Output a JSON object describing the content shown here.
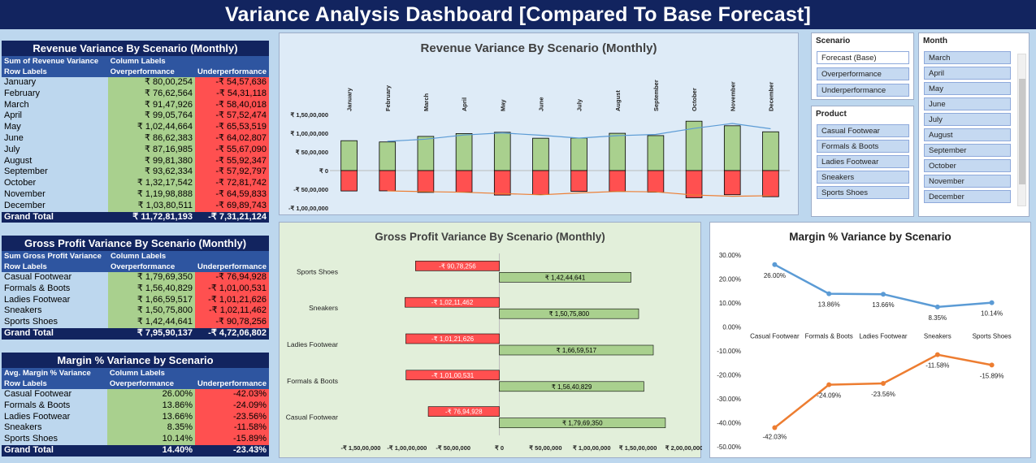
{
  "title": "Variance Analysis Dashboard [Compared To Base Forecast]",
  "pivots": {
    "revenue": {
      "title": "Revenue Variance By Scenario (Monthly)",
      "h1": [
        "Sum of Revenue Variance",
        "Column Labels",
        ""
      ],
      "h2": [
        "Row Labels",
        "Overperformance",
        "Underperformance"
      ],
      "rows": [
        [
          "January",
          "₹ 80,00,254",
          "-₹ 54,57,636"
        ],
        [
          "February",
          "₹ 76,62,564",
          "-₹ 54,31,118"
        ],
        [
          "March",
          "₹ 91,47,926",
          "-₹ 58,40,018"
        ],
        [
          "April",
          "₹ 99,05,764",
          "-₹ 57,52,474"
        ],
        [
          "May",
          "₹ 1,02,44,664",
          "-₹ 65,53,519"
        ],
        [
          "June",
          "₹ 86,62,383",
          "-₹ 64,02,807"
        ],
        [
          "July",
          "₹ 87,16,985",
          "-₹ 55,67,090"
        ],
        [
          "August",
          "₹ 99,81,380",
          "-₹ 55,92,347"
        ],
        [
          "September",
          "₹ 93,62,334",
          "-₹ 57,92,797"
        ],
        [
          "October",
          "₹ 1,32,17,542",
          "-₹ 72,81,742"
        ],
        [
          "November",
          "₹ 1,19,98,888",
          "-₹ 64,59,833"
        ],
        [
          "December",
          "₹ 1,03,80,511",
          "-₹ 69,89,743"
        ]
      ],
      "total": [
        "Grand Total",
        "₹ 11,72,81,193",
        "-₹ 7,31,21,124"
      ]
    },
    "gross": {
      "title": "Gross Profit Variance By Scenario (Monthly)",
      "h1": [
        "Sum Gross Profit Variance",
        "Column Labels",
        ""
      ],
      "h2": [
        "Row Labels",
        "Overperformance",
        "Underperformance"
      ],
      "rows": [
        [
          "Casual Footwear",
          "₹ 1,79,69,350",
          "-₹ 76,94,928"
        ],
        [
          "Formals & Boots",
          "₹ 1,56,40,829",
          "-₹ 1,01,00,531"
        ],
        [
          "Ladies Footwear",
          "₹ 1,66,59,517",
          "-₹ 1,01,21,626"
        ],
        [
          "Sneakers",
          "₹ 1,50,75,800",
          "-₹ 1,02,11,462"
        ],
        [
          "Sports Shoes",
          "₹ 1,42,44,641",
          "-₹ 90,78,256"
        ]
      ],
      "total": [
        "Grand Total",
        "₹ 7,95,90,137",
        "-₹ 4,72,06,802"
      ]
    },
    "margin": {
      "title": "Margin % Variance by Scenario",
      "h1": [
        "Avg. Margin % Variance",
        "Column Labels",
        ""
      ],
      "h2": [
        "Row Labels",
        "Overperformance",
        "Underperformance"
      ],
      "rows": [
        [
          "Casual Footwear",
          "26.00%",
          "-42.03%"
        ],
        [
          "Formals & Boots",
          "13.86%",
          "-24.09%"
        ],
        [
          "Ladies Footwear",
          "13.66%",
          "-23.56%"
        ],
        [
          "Sneakers",
          "8.35%",
          "-11.58%"
        ],
        [
          "Sports Shoes",
          "10.14%",
          "-15.89%"
        ]
      ],
      "total": [
        "Grand Total",
        "14.40%",
        "-23.43%"
      ]
    }
  },
  "slicers": {
    "scenario": {
      "title": "Scenario",
      "items": [
        "Forecast (Base)",
        "Overperformance",
        "Underperformance"
      ],
      "selected": "Forecast (Base)"
    },
    "product": {
      "title": "Product",
      "items": [
        "Casual Footwear",
        "Formals & Boots",
        "Ladies Footwear",
        "Sneakers",
        "Sports Shoes"
      ]
    },
    "month": {
      "title": "Month",
      "items": [
        "March",
        "April",
        "May",
        "June",
        "July",
        "August",
        "September",
        "October",
        "November",
        "December"
      ]
    }
  },
  "colors": {
    "over": "#a9d08e",
    "under": "#ff5050",
    "navy": "#12245f",
    "blue_line": "#5b9bd5",
    "orange_line": "#ed7d31"
  },
  "chart_data": [
    {
      "type": "bar",
      "title": "Revenue Variance By Scenario (Monthly)",
      "categories": [
        "January",
        "February",
        "March",
        "April",
        "May",
        "June",
        "July",
        "August",
        "September",
        "October",
        "November",
        "December"
      ],
      "series": [
        {
          "values": [
            8000254,
            7662564,
            9147926,
            9905764,
            10244664,
            8662383,
            8716985,
            9981380,
            9362334,
            13217542,
            11998888,
            10380511
          ]
        },
        {
          "values": [
            -5457636,
            -5431118,
            -5840018,
            -5752474,
            -6553519,
            -6402807,
            -5567090,
            -5592347,
            -5792797,
            -7281742,
            -6459833,
            -6989743
          ]
        }
      ],
      "ylim": [
        -10000000,
        15000000
      ],
      "yticks": [
        "₹ 1,50,00,000",
        "₹ 1,00,00,000",
        "₹ 50,00,000",
        "₹ 0",
        "-₹ 50,00,000",
        "-₹ 1,00,00,000"
      ],
      "xlabel": "",
      "ylabel": ""
    },
    {
      "type": "bar",
      "orientation": "horizontal",
      "title": "Gross Profit Variance By Scenario (Monthly)",
      "categories": [
        "Sports Shoes",
        "Sneakers",
        "Ladies Footwear",
        "Formals & Boots",
        "Casual Footwear"
      ],
      "series": [
        {
          "values": [
            14244641,
            15075800,
            16659517,
            15640829,
            17969350
          ],
          "labels": [
            "₹ 1,42,44,641",
            "₹ 1,50,75,800",
            "₹ 1,66,59,517",
            "₹ 1,56,40,829",
            "₹ 1,79,69,350"
          ]
        },
        {
          "values": [
            -9078256,
            -10211462,
            -10121626,
            -10100531,
            -7694928
          ],
          "labels": [
            "-₹ 90,78,256",
            "-₹ 1,02,11,462",
            "-₹ 1,01,21,626",
            "-₹ 1,01,00,531",
            "-₹ 76,94,928"
          ]
        }
      ],
      "xlim": [
        -15000000,
        20000000
      ],
      "xticks": [
        "-₹ 1,50,00,000",
        "-₹ 1,00,00,000",
        "-₹ 50,00,000",
        "₹ 0",
        "₹ 50,00,000",
        "₹ 1,00,00,000",
        "₹ 1,50,00,000",
        "₹ 2,00,00,000"
      ]
    },
    {
      "type": "line",
      "title": "Margin % Variance by Scenario",
      "categories": [
        "Casual Footwear",
        "Formals & Boots",
        "Ladies Footwear",
        "Sneakers",
        "Sports Shoes"
      ],
      "series": [
        {
          "values": [
            26.0,
            13.86,
            13.66,
            8.35,
            10.14
          ],
          "labels": [
            "26.00%",
            "13.86%",
            "13.66%",
            "8.35%",
            "10.14%"
          ]
        },
        {
          "values": [
            -42.03,
            -24.09,
            -23.56,
            -11.58,
            -15.89
          ],
          "labels": [
            "-42.03%",
            "-24.09%",
            "-23.56%",
            "-11.58%",
            "-15.89%"
          ]
        }
      ],
      "ylim": [
        -50,
        30
      ],
      "yticks": [
        "30.00%",
        "20.00%",
        "10.00%",
        "0.00%",
        "-10.00%",
        "-20.00%",
        "-30.00%",
        "-40.00%",
        "-50.00%"
      ]
    }
  ]
}
